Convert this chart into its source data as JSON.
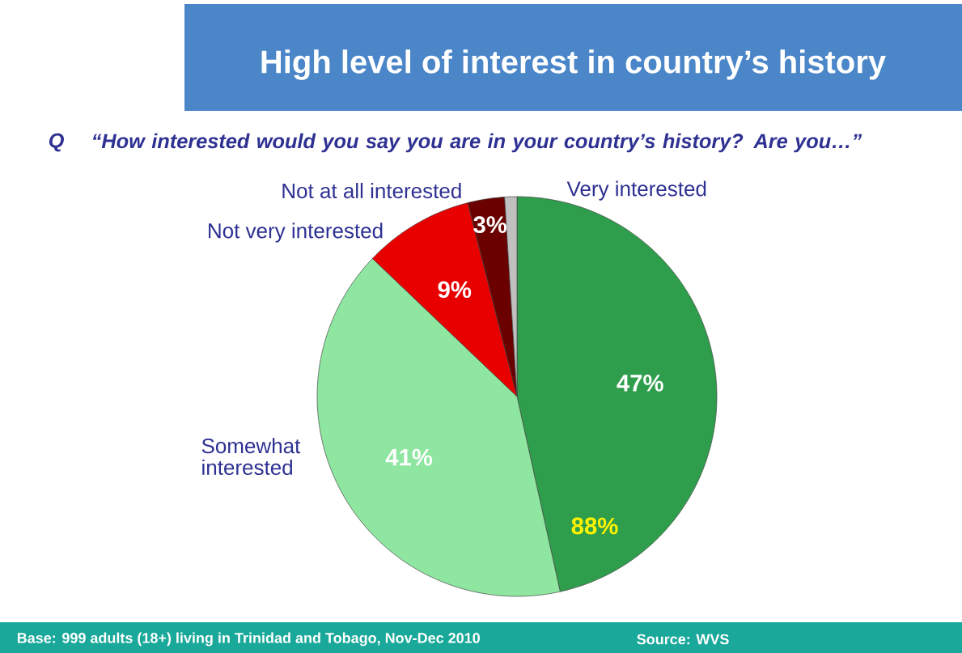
{
  "chart_data": {
    "type": "pie",
    "title": "High level of interest in country’s history",
    "subtitle": "“How interested would you say you are in your country’s history? Are you…”",
    "categories": [
      "Very interested",
      "Somewhat interested",
      "Not very interested",
      "Not at all interested",
      null
    ],
    "values": [
      47,
      41,
      9,
      3,
      1
    ],
    "value_labels": [
      "47%",
      "41%",
      "9%",
      "3%",
      null
    ],
    "colors": [
      "#2f9e4c",
      "#8ee6a0",
      "#e80000",
      "#6a0000",
      "#c0c0c0"
    ],
    "annotations": [
      "Q",
      "88%",
      "Base: 999 adults (18+) living in Trinidad and Tobago, Nov-Dec 2010",
      "Source: WVS"
    ]
  }
}
